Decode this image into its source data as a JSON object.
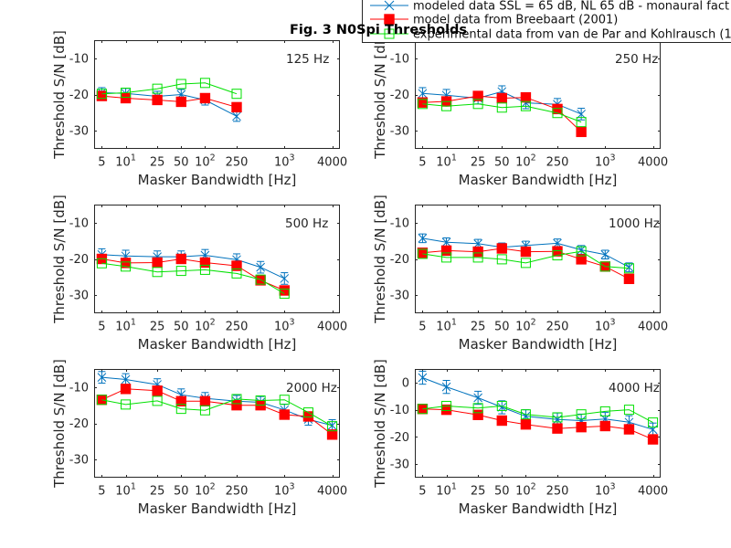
{
  "figure": {
    "title": "Fig. 3 N0Spi Thresholds",
    "legend_position": "top-right"
  },
  "legend": {
    "entries": [
      {
        "label": "modeled data SSL = 65 dB, NL 65 dB  - monaural fact",
        "color": "#0072BD",
        "marker": "x-with-errorbar"
      },
      {
        "label": "model data from Breebaart (2001)",
        "color": "#FF0000",
        "marker": "filled-square"
      },
      {
        "label": "experimental data from van de Par and Kohlrausch (1",
        "color": "#00E000",
        "marker": "open-square"
      }
    ]
  },
  "chart_data": [
    {
      "type": "line",
      "title": "125 Hz",
      "xlabel": "Masker Bandwidth [Hz]",
      "ylabel": "Threshold S/N [dB]",
      "xscale": "log",
      "xlim": [
        4,
        5000
      ],
      "ylim": [
        -35,
        -5
      ],
      "grid": false,
      "xticks": [
        5,
        10,
        25,
        50,
        100,
        250,
        1000,
        4000
      ],
      "xticklabels": [
        {
          "text": "5"
        },
        {
          "text": "10",
          "sup": "1"
        },
        {
          "text": "25"
        },
        {
          "text": "50"
        },
        {
          "text": "10",
          "sup": "2"
        },
        {
          "text": "250"
        },
        {
          "text": "10",
          "sup": "3"
        },
        {
          "text": "4000"
        }
      ],
      "yticks": [
        -30,
        -20,
        -10
      ],
      "yticklabels": [
        "-30",
        "-20",
        "-10"
      ],
      "x": [
        5,
        10,
        25,
        50,
        100,
        250
      ],
      "series": [
        {
          "name": "modeled data SSL = 65 dB, NL 65 dB  - monaural fact",
          "values": [
            -19.5,
            -19.7,
            -20.5,
            -20.0,
            -21.5,
            -26.0
          ],
          "error": 1.4
        },
        {
          "name": "model data from Breebaart (2001)",
          "values": [
            -20.4,
            -21.0,
            -21.5,
            -22.0,
            -21.0,
            -23.5
          ]
        },
        {
          "name": "experimental data from van de Par and Kohlrausch (1",
          "values": [
            -19.8,
            -19.5,
            -18.4,
            -17.1,
            -16.8,
            -19.8
          ]
        }
      ]
    },
    {
      "type": "line",
      "title": "250 Hz",
      "xlabel": "Masker Bandwidth [Hz]",
      "ylabel": "Threshold S/N [dB]",
      "xscale": "log",
      "xlim": [
        4,
        5000
      ],
      "ylim": [
        -35,
        -5
      ],
      "grid": false,
      "xticks": [
        5,
        10,
        25,
        50,
        100,
        250,
        1000,
        4000
      ],
      "xticklabels": [
        {
          "text": "5"
        },
        {
          "text": "10",
          "sup": "1"
        },
        {
          "text": "25"
        },
        {
          "text": "50"
        },
        {
          "text": "10",
          "sup": "2"
        },
        {
          "text": "250"
        },
        {
          "text": "10",
          "sup": "3"
        },
        {
          "text": "4000"
        }
      ],
      "yticks": [
        -30,
        -20,
        -10
      ],
      "yticklabels": [
        "-30",
        "-20",
        "-10"
      ],
      "x": [
        5,
        10,
        25,
        50,
        100,
        250,
        500
      ],
      "series": [
        {
          "name": "modeled data SSL = 65 dB, NL 65 dB  - monaural fact",
          "values": [
            -19.7,
            -20.2,
            -21.0,
            -19.2,
            -22.3,
            -22.7,
            -25.4
          ],
          "error": 1.6
        },
        {
          "name": "model data from Breebaart (2001)",
          "values": [
            -22.2,
            -21.9,
            -20.4,
            -21.0,
            -20.8,
            -24.0,
            -30.3
          ]
        },
        {
          "name": "experimental data from van de Par and Kohlrausch (1",
          "values": [
            -22.6,
            -23.2,
            -22.6,
            -23.6,
            -23.2,
            -25.1,
            -27.6
          ]
        }
      ]
    },
    {
      "type": "line",
      "title": "500 Hz",
      "xlabel": "Masker Bandwidth [Hz]",
      "ylabel": "Threshold S/N [dB]",
      "xscale": "log",
      "xlim": [
        4,
        5000
      ],
      "ylim": [
        -35,
        -5
      ],
      "grid": false,
      "xticks": [
        5,
        10,
        25,
        50,
        100,
        250,
        1000,
        4000
      ],
      "xticklabels": [
        {
          "text": "5"
        },
        {
          "text": "10",
          "sup": "1"
        },
        {
          "text": "25"
        },
        {
          "text": "50"
        },
        {
          "text": "10",
          "sup": "2"
        },
        {
          "text": "250"
        },
        {
          "text": "10",
          "sup": "3"
        },
        {
          "text": "4000"
        }
      ],
      "yticks": [
        -30,
        -20,
        -10
      ],
      "yticklabels": [
        "-30",
        "-20",
        "-10"
      ],
      "x": [
        5,
        10,
        25,
        50,
        100,
        250,
        500,
        1000
      ],
      "series": [
        {
          "name": "modeled data SSL = 65 dB, NL 65 dB  - monaural fact",
          "values": [
            -18.8,
            -19.2,
            -19.4,
            -19.4,
            -19.0,
            -20.2,
            -22.3,
            -25.4
          ],
          "error": 1.6
        },
        {
          "name": "model data from Breebaart (2001)",
          "values": [
            -20.0,
            -21.1,
            -21.0,
            -20.0,
            -21.0,
            -21.9,
            -25.9,
            -28.7
          ]
        },
        {
          "name": "experimental data from van de Par and Kohlrausch (1",
          "values": [
            -21.2,
            -22.1,
            -23.6,
            -23.3,
            -23.0,
            -24.0,
            -25.7,
            -29.6
          ]
        }
      ]
    },
    {
      "type": "line",
      "title": "1000 Hz",
      "xlabel": "Masker Bandwidth [Hz]",
      "ylabel": "Threshold S/N [dB]",
      "xscale": "log",
      "xlim": [
        4,
        5000
      ],
      "ylim": [
        -35,
        -5
      ],
      "grid": false,
      "xticks": [
        5,
        10,
        25,
        50,
        100,
        250,
        1000,
        4000
      ],
      "xticklabels": [
        {
          "text": "5"
        },
        {
          "text": "10",
          "sup": "1"
        },
        {
          "text": "25"
        },
        {
          "text": "50"
        },
        {
          "text": "10",
          "sup": "2"
        },
        {
          "text": "250"
        },
        {
          "text": "10",
          "sup": "3"
        },
        {
          "text": "4000"
        }
      ],
      "yticks": [
        -30,
        -20,
        -10
      ],
      "yticklabels": [
        "-30",
        "-20",
        "-10"
      ],
      "x": [
        5,
        10,
        25,
        50,
        100,
        250,
        500,
        1000,
        2000
      ],
      "series": [
        {
          "name": "modeled data SSL = 65 dB, NL 65 dB  - monaural fact",
          "values": [
            -14.3,
            -15.4,
            -15.8,
            -16.8,
            -16.3,
            -15.7,
            -17.5,
            -18.8,
            -22.3
          ],
          "error": 1.2
        },
        {
          "name": "model data from Breebaart (2001)",
          "values": [
            -18.3,
            -17.7,
            -18.0,
            -17.1,
            -18.0,
            -17.9,
            -20.1,
            -22.1,
            -25.5
          ]
        },
        {
          "name": "experimental data from van de Par and Kohlrausch (1",
          "values": [
            -18.6,
            -19.6,
            -19.6,
            -20.1,
            -21.1,
            -19.0,
            -17.9,
            -22.1,
            -22.6
          ]
        }
      ]
    },
    {
      "type": "line",
      "title": "2000 Hz",
      "xlabel": "Masker Bandwidth [Hz]",
      "ylabel": "Threshold S/N [dB]",
      "xscale": "log",
      "xlim": [
        4,
        5000
      ],
      "ylim": [
        -35,
        -5
      ],
      "grid": false,
      "xticks": [
        5,
        10,
        25,
        50,
        100,
        250,
        1000,
        4000
      ],
      "xticklabels": [
        {
          "text": "5"
        },
        {
          "text": "10",
          "sup": "1"
        },
        {
          "text": "25"
        },
        {
          "text": "50"
        },
        {
          "text": "10",
          "sup": "2"
        },
        {
          "text": "250"
        },
        {
          "text": "10",
          "sup": "3"
        },
        {
          "text": "4000"
        }
      ],
      "yticks": [
        -30,
        -20,
        -10
      ],
      "yticklabels": [
        "-30",
        "-20",
        "-10"
      ],
      "x": [
        5,
        10,
        25,
        50,
        100,
        250,
        500,
        1000,
        2000,
        4000
      ],
      "series": [
        {
          "name": "modeled data SSL = 65 dB, NL 65 dB  - monaural fact",
          "values": [
            -7.3,
            -7.9,
            -9.3,
            -12.1,
            -13.1,
            -13.9,
            -14.2,
            -16.3,
            -18.9,
            -20.6
          ],
          "error": 1.6
        },
        {
          "name": "model data from Breebaart (2001)",
          "values": [
            -13.5,
            -10.5,
            -11.0,
            -13.9,
            -13.9,
            -15.0,
            -15.0,
            -17.6,
            -18.1,
            -23.1
          ]
        },
        {
          "name": "experimental data from van de Par and Kohlrausch (1",
          "values": [
            -13.5,
            -14.8,
            -13.8,
            -16.0,
            -16.4,
            -13.3,
            -13.7,
            -13.5,
            -17.0,
            -20.8
          ]
        }
      ]
    },
    {
      "type": "line",
      "title": "4000 Hz",
      "xlabel": "Masker Bandwidth [Hz]",
      "ylabel": "Threshold S/N [dB]",
      "xscale": "log",
      "xlim": [
        4,
        5000
      ],
      "ylim": [
        -35,
        5
      ],
      "grid": false,
      "xticks": [
        5,
        10,
        25,
        50,
        100,
        250,
        1000,
        4000
      ],
      "xticklabels": [
        {
          "text": "5"
        },
        {
          "text": "10",
          "sup": "1"
        },
        {
          "text": "25"
        },
        {
          "text": "50"
        },
        {
          "text": "10",
          "sup": "2"
        },
        {
          "text": "250"
        },
        {
          "text": "10",
          "sup": "3"
        },
        {
          "text": "4000"
        }
      ],
      "yticks": [
        -30,
        -20,
        -10,
        0
      ],
      "yticklabels": [
        "-30",
        "-20",
        "-10",
        "0"
      ],
      "x": [
        5,
        10,
        25,
        50,
        100,
        250,
        500,
        1000,
        2000,
        4000
      ],
      "series": [
        {
          "name": "modeled data SSL = 65 dB, NL 65 dB  - monaural fact",
          "values": [
            1.8,
            -1.6,
            -5.6,
            -9.1,
            -12.4,
            -13.6,
            -14.0,
            -13.4,
            -14.6,
            -17.3
          ],
          "error": 2.4
        },
        {
          "name": "model data from Breebaart (2001)",
          "values": [
            -9.7,
            -10.0,
            -11.9,
            -14.0,
            -15.4,
            -16.9,
            -16.4,
            -16.0,
            -17.2,
            -20.9
          ]
        },
        {
          "name": "experimental data from van de Par and Kohlrausch (1",
          "values": [
            -9.7,
            -8.6,
            -9.4,
            -8.6,
            -11.7,
            -12.8,
            -11.7,
            -10.6,
            -10.0,
            -14.7
          ]
        }
      ]
    }
  ]
}
